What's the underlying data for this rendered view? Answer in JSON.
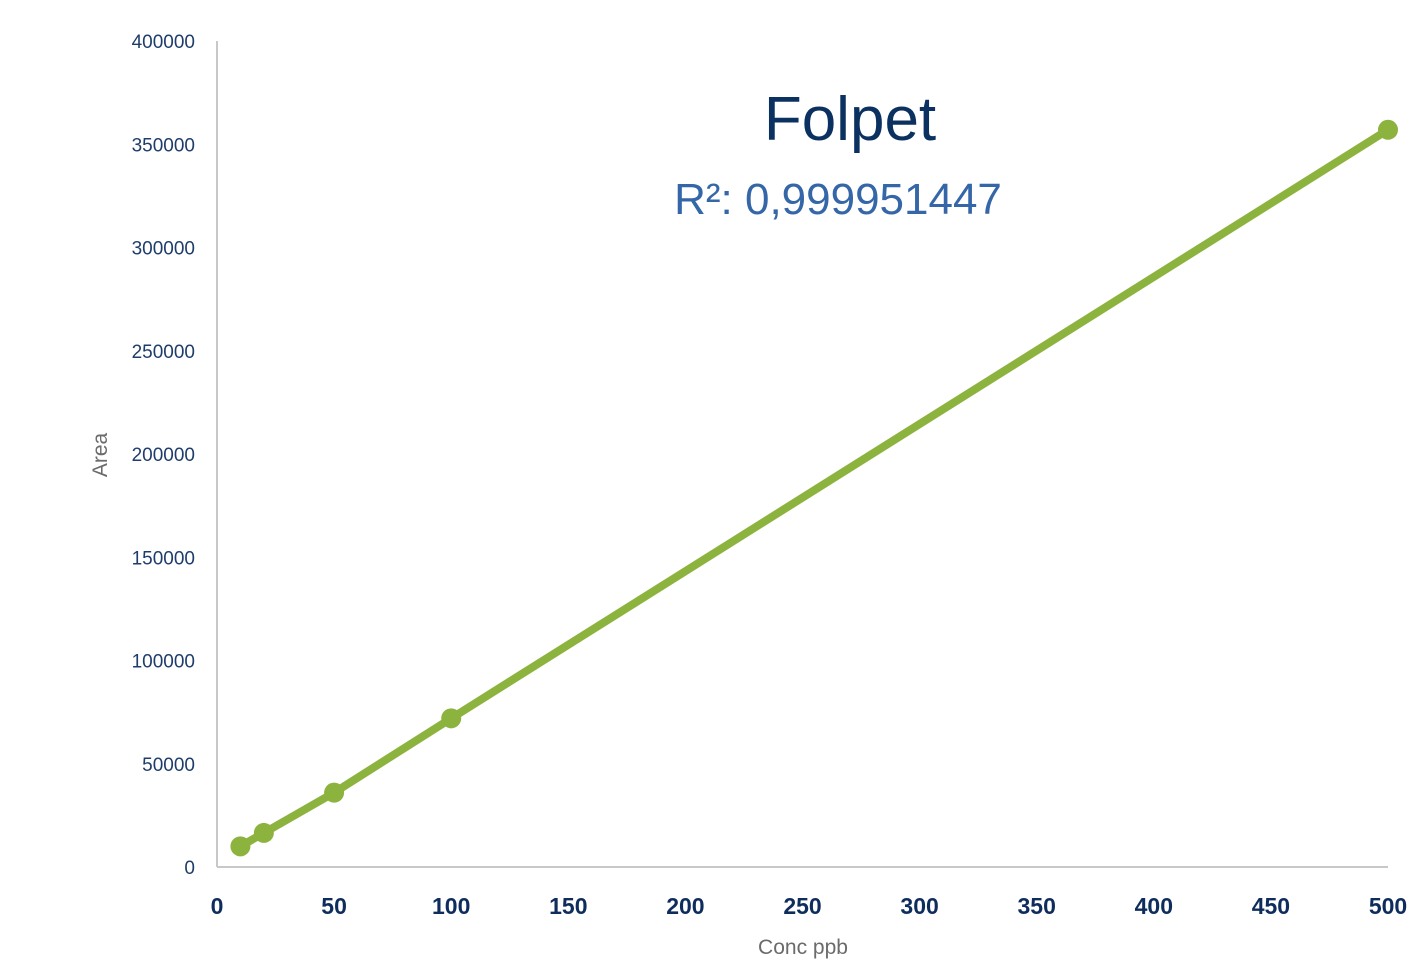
{
  "chart_data": {
    "type": "line",
    "title": "Folpet",
    "subtitle": "R²: 0,999951447",
    "xlabel": "Conc ppb",
    "ylabel": "Area",
    "xlim": [
      0,
      500
    ],
    "ylim": [
      0,
      400000
    ],
    "x_ticks": [
      "0",
      "50",
      "100",
      "150",
      "200",
      "250",
      "300",
      "350",
      "400",
      "450",
      "500"
    ],
    "y_ticks": [
      "0",
      "50000",
      "100000",
      "150000",
      "200000",
      "250000",
      "300000",
      "350000",
      "400000"
    ],
    "grid": false,
    "legend": "none",
    "series": [
      {
        "color": "#8db33f",
        "points": [
          {
            "x": 10,
            "y": 10000
          },
          {
            "x": 20,
            "y": 16500
          },
          {
            "x": 50,
            "y": 36000
          },
          {
            "x": 100,
            "y": 72000
          },
          {
            "x": 500,
            "y": 357000
          }
        ]
      }
    ]
  }
}
